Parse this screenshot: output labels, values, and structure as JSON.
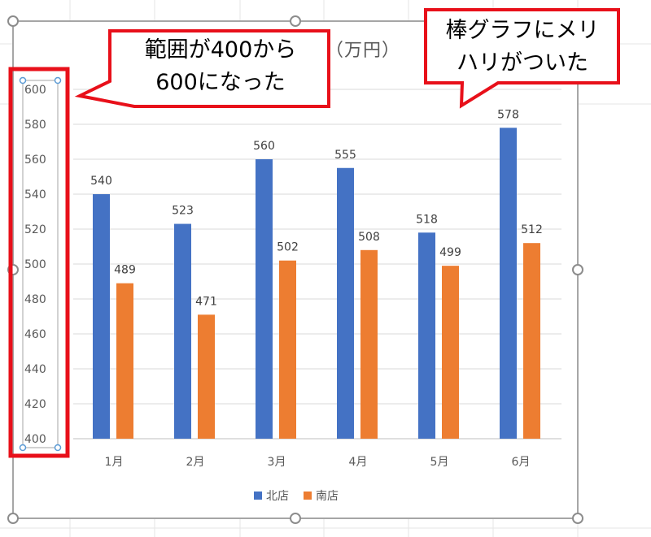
{
  "callouts": {
    "range_line1": "範囲が400から",
    "range_line2": "600になった",
    "bars_line1": "棒グラフにメリ",
    "bars_line2": "ハリがついた"
  },
  "colors": {
    "north": "#4472C4",
    "south": "#ED7D31",
    "callout_border": "#E8101A",
    "gridline": "#D9D9D9",
    "label_text": "#595959"
  },
  "chart_data": {
    "type": "bar",
    "title": "（万円）",
    "categories": [
      "1月",
      "2月",
      "3月",
      "4月",
      "5月",
      "6月"
    ],
    "series": [
      {
        "name": "北店",
        "values": [
          540,
          523,
          560,
          555,
          518,
          578
        ]
      },
      {
        "name": "南店",
        "values": [
          489,
          471,
          502,
          508,
          499,
          512
        ]
      }
    ],
    "ylim": [
      400,
      600
    ],
    "yticks": [
      400,
      420,
      440,
      460,
      480,
      500,
      520,
      540,
      560,
      580,
      600
    ],
    "grid": true,
    "data_labels": true,
    "legend_position": "bottom"
  }
}
